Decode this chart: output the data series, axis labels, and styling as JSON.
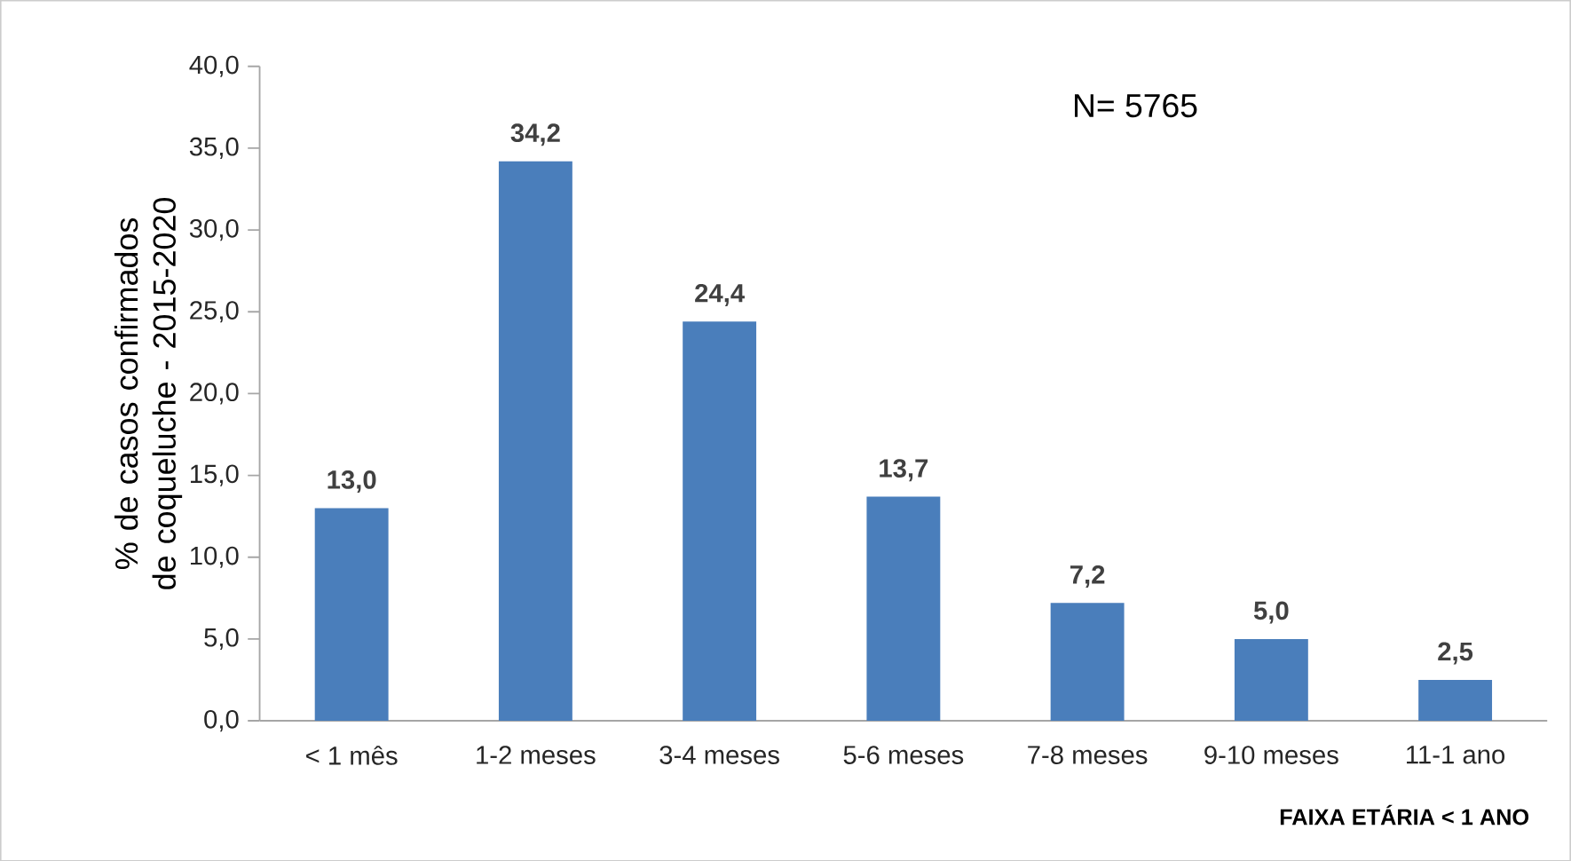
{
  "chart_data": {
    "type": "bar",
    "xlabel": "**FAIXA ETÁRIA < 1 ANO**",
    "ylabel": "% de casos confirmados de coqueluche - 2015-2020",
    "categories": [
      "< 1 mês",
      "1-2 meses",
      "3-4 meses",
      "5-6 meses",
      "7-8 meses",
      "9-10 meses",
      "11-1 ano"
    ],
    "values": [
      13.0,
      34.2,
      24.4,
      13.7,
      7.2,
      5.0,
      2.5
    ],
    "value_labels": [
      "13,0",
      "34,2",
      "24,4",
      "13,7",
      "7,2",
      "5,0",
      "2,5"
    ],
    "color": "#4a7ebb",
    "ylim": [
      0,
      40
    ],
    "yticks": [
      {
        "value": 0,
        "label": "0,0"
      },
      {
        "value": 5,
        "label": "5,0"
      },
      {
        "value": 10,
        "label": "10,0"
      },
      {
        "value": 15,
        "label": "15,0"
      },
      {
        "value": 20,
        "label": "20,0"
      },
      {
        "value": 25,
        "label": "25,0"
      },
      {
        "value": 30,
        "label": "30,0"
      },
      {
        "value": 35,
        "label": "35,0"
      },
      {
        "value": 40,
        "label": "40,0"
      }
    ],
    "grid": false,
    "annotations": [
      "N= 5765"
    ]
  }
}
